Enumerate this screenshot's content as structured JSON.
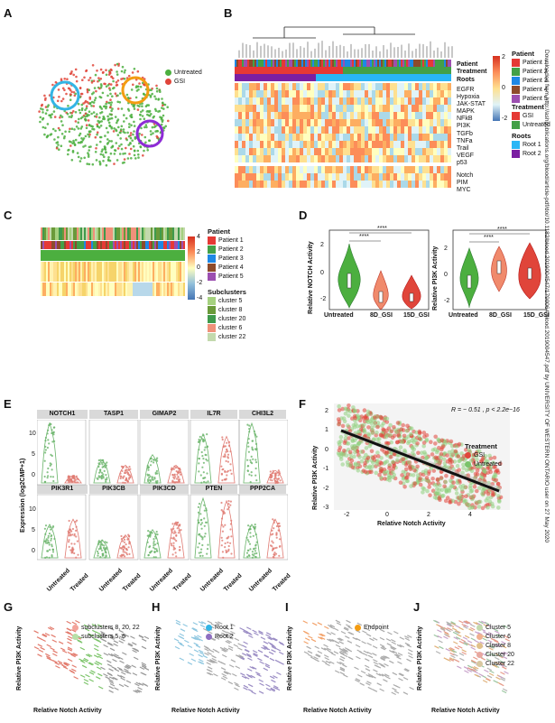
{
  "panels": {
    "a": "A",
    "b": "B",
    "c": "C",
    "d": "D",
    "e": "E",
    "f": "F",
    "g": "G",
    "h": "H",
    "i": "I",
    "j": "J"
  },
  "colors": {
    "untreated": "#4caf3f",
    "gsi": "#e0453a",
    "circle_blue": "#33b5e5",
    "circle_orange": "#f39c12",
    "circle_purple": "#8e2bd6"
  },
  "panelA": {
    "legend": [
      {
        "label": "Untreated",
        "color": "#4caf3f"
      },
      {
        "label": "GSI",
        "color": "#e0453a"
      }
    ]
  },
  "panelB": {
    "row_labels": [
      "Patient",
      "Treatment",
      "Roots"
    ],
    "pathways": [
      "EGFR",
      "Hypoxia",
      "JAK-STAT",
      "MAPK",
      "NFkB",
      "PI3K",
      "TGFb",
      "TNFa",
      "Trail",
      "VEGF",
      "p53",
      "Notch",
      "PIM",
      "MYC"
    ],
    "scale_ticks": [
      "2",
      "0",
      "-2"
    ],
    "legend": {
      "patient_title": "Patient",
      "patients": [
        {
          "label": "Patient 1",
          "color": "#e53935"
        },
        {
          "label": "Patient 2",
          "color": "#43a047"
        },
        {
          "label": "Patient 3",
          "color": "#1e88e5"
        },
        {
          "label": "Patient 4",
          "color": "#8d4b2b"
        },
        {
          "label": "Patient 5",
          "color": "#9c4fb0"
        }
      ],
      "treatment_title": "Treatment",
      "treatments": [
        {
          "label": "GSI",
          "color": "#e53935"
        },
        {
          "label": "Untreated",
          "color": "#43a047"
        }
      ],
      "roots_title": "Roots",
      "roots": [
        {
          "label": "Root 1",
          "color": "#29b6f6"
        },
        {
          "label": "Root 2",
          "color": "#7b1fa2"
        }
      ]
    }
  },
  "panelC": {
    "scale_ticks": [
      "4",
      "2",
      "0",
      "-2",
      "-4"
    ],
    "patient_title": "Patient",
    "patients": [
      "Patient 1",
      "Patient 2",
      "Patient 3",
      "Patient 4",
      "Patient 5"
    ],
    "subclusters_title": "Subclusters",
    "subclusters": [
      {
        "label": "cluster 5",
        "color": "#a5d17f"
      },
      {
        "label": "cluster 8",
        "color": "#6a9a3a"
      },
      {
        "label": "cluster 20",
        "color": "#3f9a4c"
      },
      {
        "label": "cluster 6",
        "color": "#f0917a"
      },
      {
        "label": "cluster 22",
        "color": "#c3d9ad"
      }
    ]
  },
  "panelD": {
    "left": {
      "ylabel": "Relative NOTCH Activity",
      "groups": [
        "Untreated",
        "8D_GSI",
        "15D_GSI"
      ],
      "yticks": [
        "2",
        "0",
        "-2"
      ],
      "sig": [
        "****",
        "****"
      ]
    },
    "right": {
      "ylabel": "Relative PI3K Activity",
      "groups": [
        "Untreated",
        "8D_GSI",
        "15D_GSI"
      ],
      "yticks": [
        "2",
        "0",
        "-2"
      ],
      "sig": [
        "****",
        "****"
      ]
    }
  },
  "panelE": {
    "ylabel": "Expression (log2CMP+1)",
    "genes_top": [
      "NOTCH1",
      "TASP1",
      "GIMAP2",
      "IL7R",
      "CHI3L2"
    ],
    "genes_bottom": [
      "PIK3R1",
      "PIK3CB",
      "PIK3CD",
      "PTEN",
      "PPP2CA"
    ],
    "groups": [
      "Untreated",
      "Treated"
    ],
    "yticks": [
      "10",
      "5",
      "0"
    ]
  },
  "panelF": {
    "annotation": "R = − 0.51 , p < 2.2e−16",
    "legend_title": "Treatment",
    "legend": [
      {
        "label": "GSI",
        "color": "#e0453a"
      },
      {
        "label": "Untreated",
        "color": "#7ac36a"
      }
    ],
    "xlabel": "Relative Notch Activity",
    "ylabel": "Relative PI3K Activity",
    "xticks": [
      "-2",
      "0",
      "2",
      "4"
    ],
    "yticks": [
      "2",
      "1",
      "0",
      "-1",
      "-2",
      "-3"
    ]
  },
  "panelG": {
    "legend": [
      {
        "label": "subclusters 8, 20, 22",
        "color": "#f3a39a"
      },
      {
        "label": "subclusters 5, 6",
        "color": "#b7e0a7"
      }
    ],
    "xlabel": "Relative Notch Activity",
    "ylabel": "Relative PI3K Activity"
  },
  "panelH": {
    "legend": [
      {
        "label": "Root 1",
        "color": "#33b5e5"
      },
      {
        "label": "Root 2",
        "color": "#8e6fc1"
      }
    ],
    "xlabel": "Relative Notch Activity",
    "ylabel": "Relative PI3K Activity"
  },
  "panelI": {
    "legend": [
      {
        "label": "Endpoint",
        "color": "#f39c12"
      }
    ],
    "xlabel": "Relative Notch Activity",
    "ylabel": "Relative PI3K Activity"
  },
  "panelJ": {
    "legend": [
      "Cluster 5",
      "Cluster 6",
      "Cluster 8",
      "Cluster 20",
      "Cluster 22"
    ],
    "xlabel": "Relative Notch Activity",
    "ylabel": "Relative PI3K Activity"
  },
  "side_watermark": "Downloaded from http://ashpublications.org/blood/article-pdf/doi/10.1182/blood.2019004547/1790064/blood.2019004547.pdf by UNIVERSITY OF WESTERN ONTARIO user on 27 May 2020"
}
